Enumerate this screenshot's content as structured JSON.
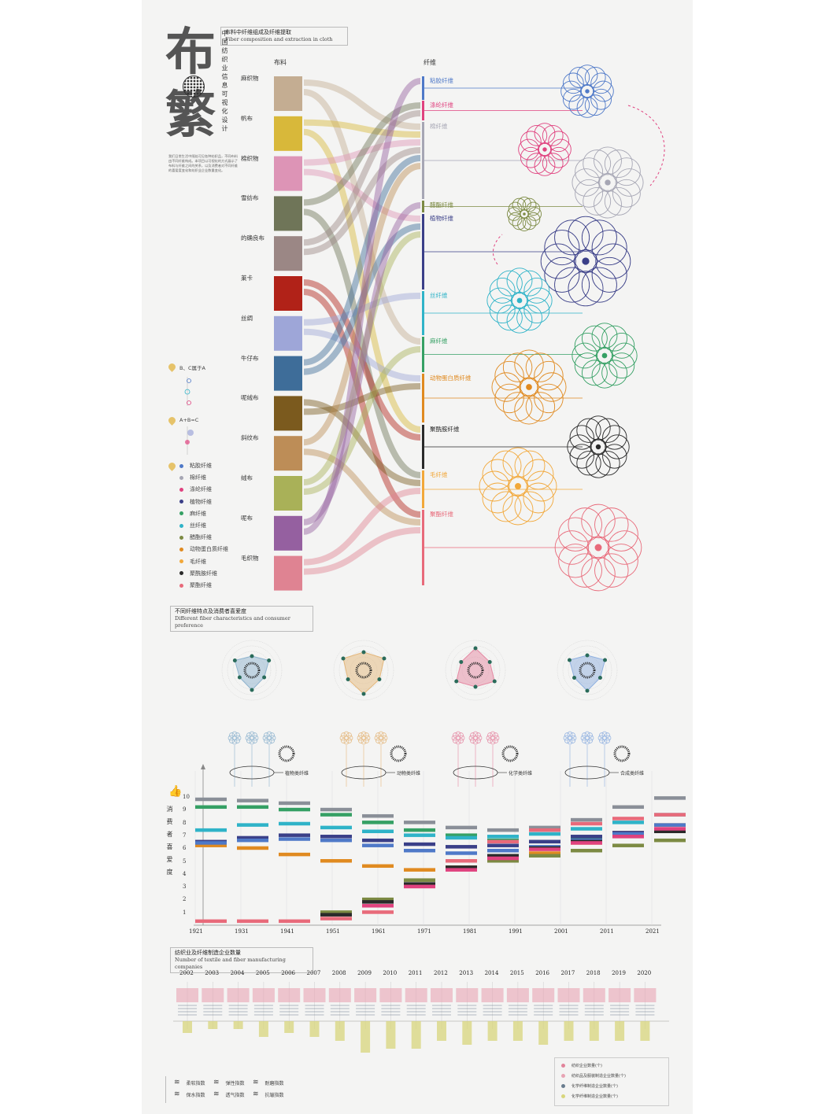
{
  "title": {
    "big_chars": [
      "布",
      "繁"
    ],
    "vertical": "中国纺织业信息可视化设计",
    "intro_text": "我们日常生活中随处可见各种纺织品，不同布料由不同纤维构成。本项目以可视化的方式展示了布料与纤维之间的关系，以及消费者对不同纤维的喜爱度变化和纺织业企业数量变化。"
  },
  "section1": {
    "title_cn": "布料中纤维组成及纤维提取",
    "title_en": "Fiber composition and extraction in cloth",
    "col_fabric": "布料",
    "col_fiber": "纤维",
    "fabrics": [
      {
        "name": "麻织物",
        "color": "#c4ad92"
      },
      {
        "name": "帆布",
        "color": "#d8b83a"
      },
      {
        "name": "棉织物",
        "color": "#dd94b6"
      },
      {
        "name": "雪纺布",
        "color": "#6f7558"
      },
      {
        "name": "的确良布",
        "color": "#9b8785"
      },
      {
        "name": "莱卡",
        "color": "#b12218"
      },
      {
        "name": "丝绸",
        "color": "#9ea6d8"
      },
      {
        "name": "牛仔布",
        "color": "#3e6d99"
      },
      {
        "name": "呢绒布",
        "color": "#7b5a1e"
      },
      {
        "name": "斜纹布",
        "color": "#bd8d57"
      },
      {
        "name": "绒布",
        "color": "#a9b158"
      },
      {
        "name": "呢布",
        "color": "#9560a0"
      },
      {
        "name": "毛织物",
        "color": "#df8392"
      }
    ],
    "fibers": [
      {
        "name": "粘胶纤维",
        "color": "#4f79c8"
      },
      {
        "name": "涤纶纤维",
        "color": "#e0427f"
      },
      {
        "name": "棉纤维",
        "color": "#a6a6b4"
      },
      {
        "name": "醋酯纤维",
        "color": "#7c8a43"
      },
      {
        "name": "植物纤维",
        "color": "#3a3f88"
      },
      {
        "name": "丝纤维",
        "color": "#2fb3c8"
      },
      {
        "name": "麻纤维",
        "color": "#35a064"
      },
      {
        "name": "动物蛋白质纤维",
        "color": "#e08a20"
      },
      {
        "name": "聚酰胺纤维",
        "color": "#2a2a2a"
      },
      {
        "name": "毛纤维",
        "color": "#f2a83a"
      },
      {
        "name": "聚酯纤维",
        "color": "#e86a7a"
      }
    ]
  },
  "legend": {
    "rule1": "B、C属于A",
    "rule2": "A+B=C",
    "labels": [
      "A",
      "B",
      "C"
    ],
    "items": [
      {
        "name": "粘胶纤维",
        "color": "#4f79c8"
      },
      {
        "name": "棉纤维",
        "color": "#a6a6b4"
      },
      {
        "name": "涤纶纤维",
        "color": "#e0427f"
      },
      {
        "name": "植物纤维",
        "color": "#3a3f88"
      },
      {
        "name": "麻纤维",
        "color": "#35a064"
      },
      {
        "name": "丝纤维",
        "color": "#2fb3c8"
      },
      {
        "name": "醋酯纤维",
        "color": "#7c8a43"
      },
      {
        "name": "动物蛋白质纤维",
        "color": "#e08a20"
      },
      {
        "name": "毛纤维",
        "color": "#f2a83a"
      },
      {
        "name": "聚酰胺纤维",
        "color": "#2a2a2a"
      },
      {
        "name": "聚酯纤维",
        "color": "#e86a7a"
      }
    ]
  },
  "section2": {
    "title_cn": "不同纤维特点及消费者喜爱度",
    "title_en": "Different fiber characteristics and consumer preference",
    "groups": [
      {
        "label": "植物类纤维",
        "color": "#8fb4cf"
      },
      {
        "label": "动物类纤维",
        "color": "#e4b77c"
      },
      {
        "label": "化学类纤维",
        "color": "#e58aa4"
      },
      {
        "label": "合成类纤维",
        "color": "#8fb0e0"
      }
    ],
    "y_title": "消费者喜爱度",
    "y_ticks": [
      "1",
      "2",
      "3",
      "4",
      "5",
      "6",
      "7",
      "8",
      "9",
      "10"
    ],
    "x_ticks": [
      "1921",
      "1931",
      "1941",
      "1951",
      "1961",
      "1971",
      "1981",
      "1991",
      "2001",
      "2011",
      "2021"
    ]
  },
  "section3": {
    "title_cn": "纺织业及纤维制造企业数量",
    "title_en": "Number of textile and fiber manufacturing companies",
    "years": [
      "2002",
      "2003",
      "2004",
      "2005",
      "2006",
      "2007",
      "2008",
      "2009",
      "2010",
      "2011",
      "2012",
      "2013",
      "2014",
      "2015",
      "2016",
      "2017",
      "2018",
      "2019",
      "2020"
    ],
    "yellow_values": [
      3,
      2,
      2,
      4,
      3,
      4,
      5,
      8,
      7,
      7,
      5,
      6,
      5,
      5,
      6,
      5,
      5,
      5,
      5
    ],
    "legend": [
      {
        "name": "纺织企业数量(个)",
        "color": "#e2849b"
      },
      {
        "name": "纺织品及服装制造企业数量(个)",
        "color": "#e7a4b4"
      },
      {
        "name": "化学纤维制造企业数量(个)",
        "color": "#6a7d8e"
      },
      {
        "name": "化学纤维制造企业数量(个)",
        "color": "#d8d67c"
      }
    ]
  },
  "bottom_legend": [
    "柔软指数",
    "弹性指数",
    "耐磨指数",
    "保水指数",
    "透气指数",
    "抗皱指数"
  ]
}
